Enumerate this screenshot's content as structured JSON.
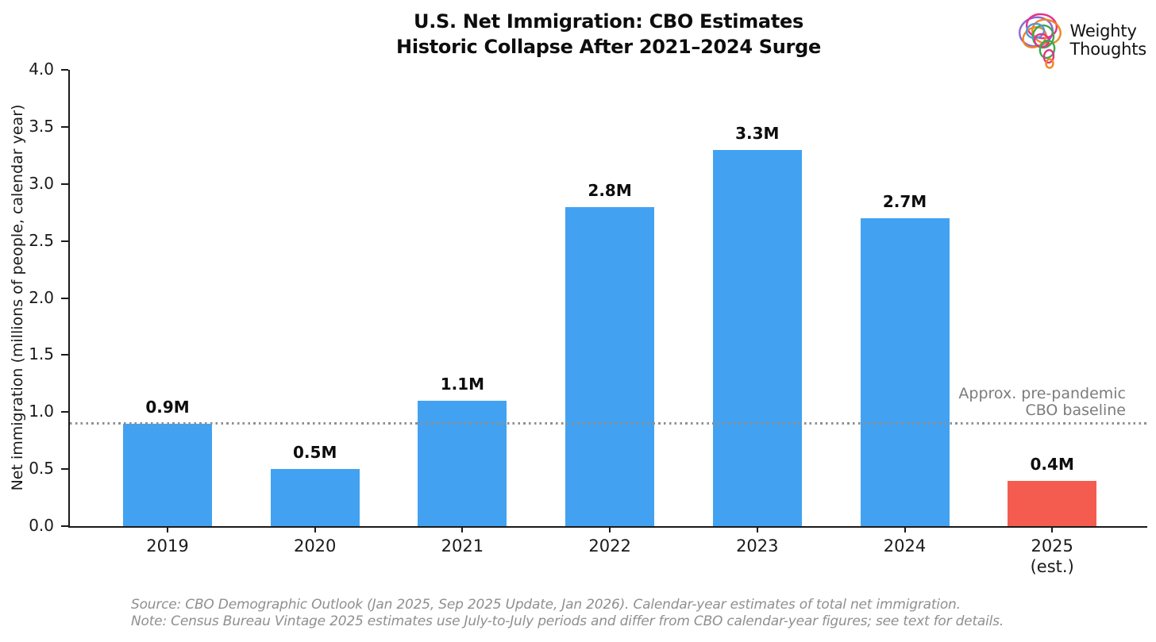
{
  "header": {
    "title_line1": "U.S. Net Immigration: CBO Estimates",
    "title_line2": "Historic Collapse After 2021–2024 Surge"
  },
  "logo": {
    "line1": "Weighty",
    "line2": "Thoughts"
  },
  "chart_data": {
    "type": "bar",
    "categories": [
      "2019",
      "2020",
      "2021",
      "2022",
      "2023",
      "2024",
      "2025"
    ],
    "x_sub_labels": [
      "",
      "",
      "",
      "",
      "",
      "",
      "(est.)"
    ],
    "values": [
      0.9,
      0.5,
      1.1,
      2.8,
      3.3,
      2.7,
      0.4
    ],
    "bar_labels": [
      "0.9M",
      "0.5M",
      "1.1M",
      "2.8M",
      "3.3M",
      "2.7M",
      "0.4M"
    ],
    "bar_colors": [
      "#42a2f1",
      "#42a2f1",
      "#42a2f1",
      "#42a2f1",
      "#42a2f1",
      "#42a2f1",
      "#f55c50"
    ],
    "title": "U.S. Net Immigration: CBO Estimates — Historic Collapse After 2021–2024 Surge",
    "xlabel": "",
    "ylabel": "Net immigration (millions of people, calendar year)",
    "ylim": [
      0.0,
      4.0
    ],
    "yticks": [
      0.0,
      0.5,
      1.0,
      1.5,
      2.0,
      2.5,
      3.0,
      3.5,
      4.0
    ],
    "grid": false,
    "legend": "none",
    "baseline": {
      "value": 0.9,
      "label_line1": "Approx. pre-pandemic",
      "label_line2": "CBO baseline"
    }
  },
  "colors": {
    "bar_blue": "#42a2f1",
    "bar_red": "#f55c50",
    "baseline_gray": "#8f8f8f",
    "annotation_gray": "#7c7c7c",
    "footer_gray": "#8f8f8f",
    "axis_black": "#1a1a1a"
  },
  "footer": {
    "source_line": "Source: CBO Demographic Outlook (Jan 2025, Sep 2025 Update, Jan 2026). Calendar-year estimates of total net immigration.",
    "note_line": "Note: Census Bureau Vintage 2025 estimates use July-to-July periods and differ from CBO calendar-year figures; see text for details."
  }
}
